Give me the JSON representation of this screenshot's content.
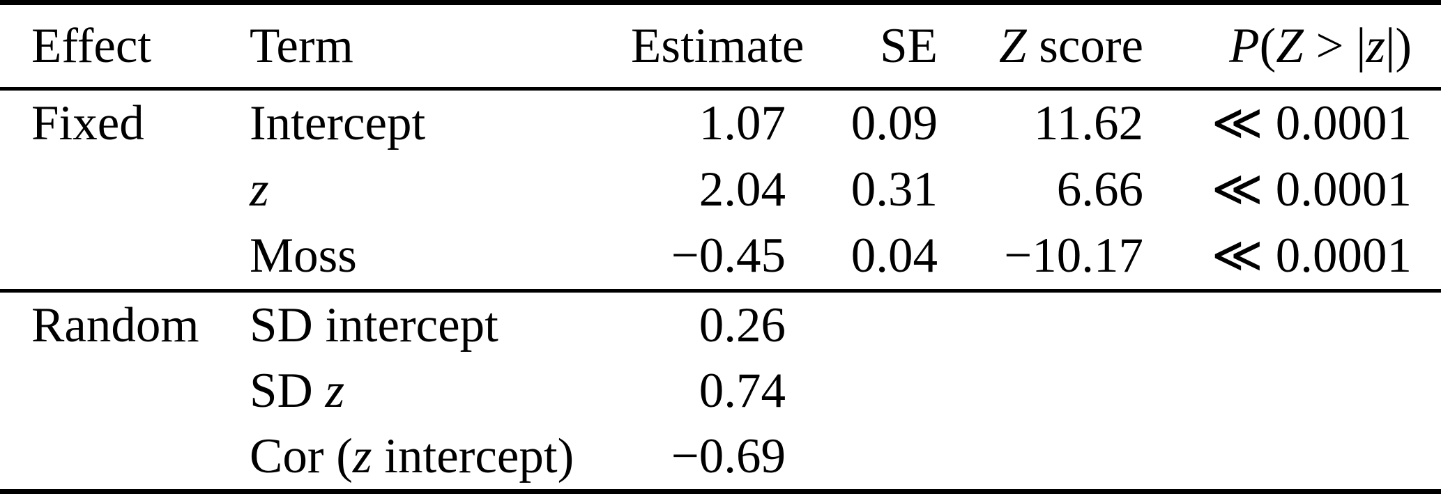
{
  "colors": {
    "background": "#ffffff",
    "text": "#000000",
    "rule": "#000000"
  },
  "table": {
    "header": {
      "effect": [
        {
          "t": "Effect",
          "i": false
        }
      ],
      "term": [
        {
          "t": "Term",
          "i": false
        }
      ],
      "estimate": [
        {
          "t": "Estimate",
          "i": false
        }
      ],
      "se": [
        {
          "t": "SE",
          "i": false
        }
      ],
      "z_score": [
        {
          "t": "Z",
          "i": true
        },
        {
          "t": " score",
          "i": false
        }
      ],
      "p_value": [
        {
          "t": "P",
          "i": true
        },
        {
          "t": "(",
          "i": false
        },
        {
          "t": "Z",
          "i": true
        },
        {
          "t": " > |",
          "i": false
        },
        {
          "t": "z",
          "i": true
        },
        {
          "t": "|)",
          "i": false
        }
      ]
    },
    "sections": [
      {
        "effect": "Fixed",
        "rows": [
          {
            "term": [
              {
                "t": "Intercept",
                "i": false
              }
            ],
            "estimate": "1.07",
            "se": "0.09",
            "z_score": "11.62",
            "p_value": "≪ 0.0001"
          },
          {
            "term": [
              {
                "t": "z",
                "i": true
              }
            ],
            "estimate": "2.04",
            "se": "0.31",
            "z_score": "6.66",
            "p_value": "≪ 0.0001"
          },
          {
            "term": [
              {
                "t": "Moss",
                "i": false
              }
            ],
            "estimate": "−0.45",
            "se": "0.04",
            "z_score": "−10.17",
            "p_value": "≪ 0.0001"
          }
        ]
      },
      {
        "effect": "Random",
        "rows": [
          {
            "term": [
              {
                "t": "SD intercept",
                "i": false
              }
            ],
            "estimate": "0.26"
          },
          {
            "term": [
              {
                "t": "SD ",
                "i": false
              },
              {
                "t": "z",
                "i": true
              }
            ],
            "estimate": "0.74"
          },
          {
            "term": [
              {
                "t": "Cor (",
                "i": false
              },
              {
                "t": "z",
                "i": true
              },
              {
                "t": " intercept)",
                "i": false
              }
            ],
            "estimate": "−0.69"
          }
        ]
      }
    ]
  }
}
